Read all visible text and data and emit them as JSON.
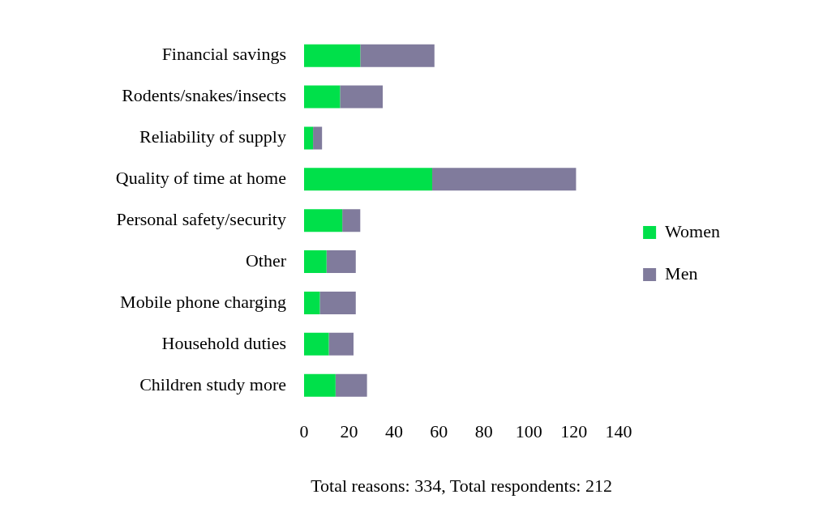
{
  "chart_data": {
    "type": "bar",
    "orientation": "horizontal",
    "stacked": true,
    "xlabel": "Total reasons: 334, Total respondents: 212",
    "categories": [
      "Financial savings",
      "Rodents/snakes/insects",
      "Reliability of supply",
      "Quality of time at home",
      "Personal safety/security",
      "Other",
      "Mobile phone charging",
      "Household duties",
      "Children study more"
    ],
    "series": [
      {
        "name": "Women",
        "color": "#00e04a",
        "values": [
          25,
          16,
          4,
          57,
          17,
          10,
          7,
          11,
          14
        ]
      },
      {
        "name": "Men",
        "color": "#807b9c",
        "values": [
          33,
          19,
          4,
          64,
          8,
          13,
          16,
          11,
          14
        ]
      }
    ],
    "xlim": [
      0,
      140
    ],
    "xticks": [
      0,
      20,
      40,
      60,
      80,
      100,
      120,
      140
    ],
    "grid": false,
    "legend": "right"
  }
}
